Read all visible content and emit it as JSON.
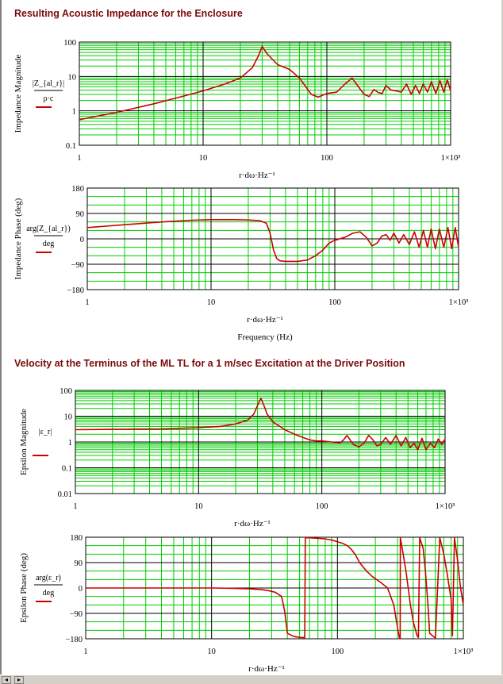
{
  "sections": {
    "impedance_title": "Resulting Acoustic Impedance for the Enclosure",
    "velocity_title": "Velocity at the Terminus of the ML TL for a 1 m/sec Excitation at the Driver Position"
  },
  "colors": {
    "curve": "#cc0000",
    "grid": "#00cc00",
    "title": "#7a0a0a"
  },
  "chart_data": [
    {
      "id": "impedance-magnitude",
      "type": "line",
      "xscale": "log",
      "yscale": "log",
      "xlim": [
        1,
        1000
      ],
      "ylim": [
        0.1,
        100
      ],
      "xticks": [
        "1",
        "10",
        "100",
        "1×10³"
      ],
      "yticks": [
        "100",
        "10",
        "1",
        "0.1"
      ],
      "ylabel": "Impedance Magnitude",
      "ann_top": "|Z_{al_r}|",
      "ann_bottom": "ρ·c",
      "xlabel": "r·dω·Hz⁻¹",
      "series": [
        {
          "x": [
            1,
            2,
            4,
            7,
            10,
            15,
            20,
            25,
            28,
            30,
            33,
            40,
            50,
            60,
            75,
            85,
            100,
            120,
            140,
            160,
            180,
            200,
            220,
            240,
            260,
            280,
            300,
            330,
            360,
            400,
            440,
            480,
            520,
            560,
            600,
            650,
            700,
            760,
            820,
            880,
            940,
            1000
          ],
          "y": [
            0.55,
            0.9,
            1.6,
            2.7,
            3.8,
            6,
            9,
            18,
            40,
            75,
            45,
            22,
            16,
            9,
            3,
            2.5,
            3.2,
            3.5,
            6,
            9,
            5,
            3,
            2.6,
            4.2,
            3.4,
            3.2,
            5.5,
            4,
            3.8,
            3.5,
            6,
            3,
            5.5,
            3.2,
            6,
            3.5,
            7,
            3.2,
            7.5,
            3.5,
            8,
            3.8
          ]
        }
      ]
    },
    {
      "id": "impedance-phase",
      "type": "line",
      "xscale": "log",
      "yscale": "linear",
      "xlim": [
        1,
        1000
      ],
      "ylim": [
        -180,
        180
      ],
      "xticks": [
        "1",
        "10",
        "100",
        "1×10³"
      ],
      "yticks": [
        "180",
        "90",
        "0",
        "−90",
        "−180"
      ],
      "ylabel": "Impedance Phase (deg)",
      "ann_top": "arg(Z_{al_r})",
      "ann_bottom": "deg",
      "xlabel": "r·dω·Hz⁻¹",
      "xlabel2": "Frequency (Hz)",
      "series": [
        {
          "x": [
            1,
            2,
            4,
            7,
            10,
            15,
            20,
            25,
            28,
            30,
            32,
            34,
            36,
            40,
            50,
            60,
            70,
            80,
            90,
            100,
            120,
            140,
            160,
            180,
            200,
            220,
            240,
            260,
            280,
            300,
            330,
            360,
            400,
            440,
            480,
            520,
            560,
            600,
            650,
            700,
            760,
            820,
            880,
            940,
            1000
          ],
          "y": [
            40,
            50,
            60,
            66,
            68,
            68,
            67,
            64,
            55,
            20,
            -40,
            -70,
            -78,
            -80,
            -80,
            -75,
            -60,
            -40,
            -15,
            -5,
            5,
            20,
            25,
            5,
            -25,
            -15,
            10,
            15,
            -5,
            20,
            -15,
            15,
            -20,
            25,
            -30,
            30,
            -30,
            35,
            -35,
            35,
            -30,
            40,
            -35,
            40,
            -30
          ]
        }
      ]
    },
    {
      "id": "epsilon-magnitude",
      "type": "line",
      "xscale": "log",
      "yscale": "log",
      "xlim": [
        1,
        1000
      ],
      "ylim": [
        0.01,
        100
      ],
      "xticks": [
        "1",
        "10",
        "100",
        "1×10³"
      ],
      "yticks": [
        "100",
        "10",
        "1",
        "0.1",
        "0.01"
      ],
      "ylabel": "Epsilon Magnitude",
      "ann_top": "|ε_r|",
      "ann_bottom": "",
      "xlabel": "r·dω·Hz⁻¹",
      "series": [
        {
          "x": [
            1,
            5,
            10,
            15,
            20,
            25,
            28,
            30,
            32,
            34,
            36,
            40,
            50,
            60,
            70,
            80,
            90,
            100,
            120,
            140,
            150,
            160,
            180,
            200,
            220,
            240,
            260,
            280,
            300,
            330,
            360,
            400,
            440,
            480,
            520,
            560,
            600,
            650,
            700,
            760,
            820,
            880,
            940,
            1000
          ],
          "y": [
            3,
            3.2,
            3.6,
            4,
            5,
            7,
            12,
            25,
            50,
            25,
            12,
            6,
            3,
            2,
            1.5,
            1.2,
            1.1,
            1.1,
            1,
            0.9,
            1.2,
            1.8,
            0.8,
            0.65,
            0.9,
            1.8,
            1.2,
            0.7,
            0.8,
            1.5,
            0.8,
            1.8,
            0.7,
            1.5,
            0.6,
            0.9,
            0.5,
            1.4,
            0.5,
            0.9,
            0.6,
            1.3,
            0.8,
            1.3
          ]
        }
      ]
    },
    {
      "id": "epsilon-phase",
      "type": "line",
      "xscale": "log",
      "yscale": "linear",
      "xlim": [
        1,
        1000
      ],
      "ylim": [
        -180,
        180
      ],
      "xticks": [
        "1",
        "10",
        "100",
        "1×10³"
      ],
      "yticks": [
        "180",
        "90",
        "0",
        "−90",
        "−180"
      ],
      "ylabel": "Epsilon Phase (deg)",
      "ann_top": "arg(ε_r)",
      "ann_bottom": "deg",
      "xlabel": "r·dω·Hz⁻¹",
      "series": [
        {
          "x": [
            1,
            5,
            10,
            15,
            20,
            25,
            28,
            32,
            36,
            38,
            40,
            45,
            50,
            55,
            55.5,
            60,
            70,
            80,
            90,
            100,
            110,
            120,
            130,
            140,
            150,
            170,
            190,
            220,
            250,
            280,
            300,
            310,
            315,
            316,
            330,
            350,
            380,
            400,
            430,
            440,
            450,
            480,
            500,
            520,
            530,
            540,
            600,
            650,
            700,
            750,
            800,
            810,
            820,
            850,
            900,
            950,
            1000
          ],
          "y": [
            0,
            0,
            0,
            -1,
            -3,
            -6,
            -9,
            -15,
            -30,
            -80,
            -160,
            -172,
            -175,
            -176,
            178,
            178,
            176,
            174,
            170,
            164,
            158,
            150,
            135,
            115,
            90,
            60,
            40,
            20,
            0,
            -60,
            -140,
            -175,
            -180,
            178,
            130,
            60,
            -60,
            -120,
            -170,
            -175,
            178,
            140,
            60,
            -40,
            -100,
            -160,
            -178,
            178,
            120,
            40,
            -40,
            -120,
            -170,
            178,
            100,
            0,
            -60
          ]
        }
      ]
    }
  ]
}
